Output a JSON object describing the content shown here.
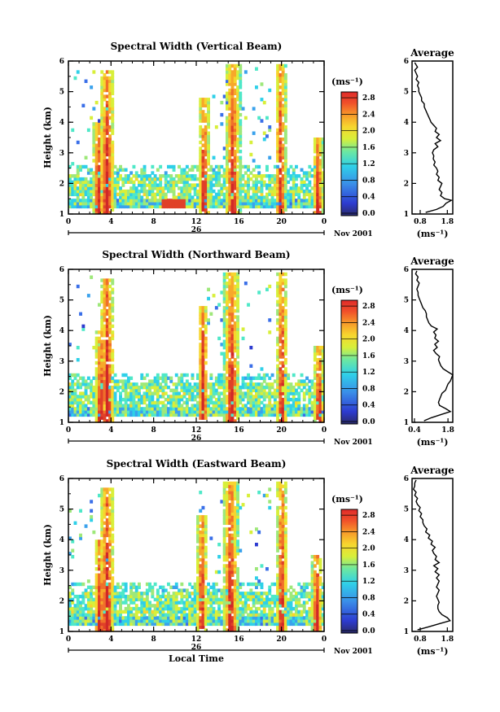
{
  "chart_data": [
    {
      "type": "heatmap",
      "title": "Spectral Width (Vertical Beam)",
      "ylabel": "Height (km)",
      "xticks": [
        "0",
        "4",
        "8",
        "12",
        "16",
        "20",
        "0"
      ],
      "yticks": [
        "1",
        "2",
        "3",
        "4",
        "5",
        "6"
      ],
      "xlim": [
        0,
        24
      ],
      "ylim": [
        1,
        6
      ],
      "day_label": "26",
      "month_label": "Nov 2001",
      "colorbar": {
        "unit": "(ms⁻¹)",
        "ticks": [
          "0.0",
          "0.4",
          "0.8",
          "1.2",
          "1.6",
          "2.0",
          "2.4",
          "2.8"
        ],
        "range": [
          0,
          3.0
        ]
      },
      "burst_times": [
        2.7,
        3.5,
        12.6,
        15.3,
        19.8,
        23.3
      ],
      "average": {
        "title": "Average",
        "xticks": [
          "0.8",
          "1.8"
        ],
        "xlabel": "(ms⁻¹)",
        "xlim": [
          0.5,
          2.0
        ],
        "height": [
          1.05,
          1.15,
          1.25,
          1.35,
          1.45,
          1.5,
          1.6,
          1.7,
          1.8,
          1.9,
          2.0,
          2.1,
          2.2,
          2.3,
          2.4,
          2.5,
          2.6,
          2.7,
          2.8,
          2.9,
          3.0,
          3.1,
          3.2,
          3.3,
          3.4,
          3.5,
          3.6,
          3.7,
          3.8,
          3.9,
          4.0,
          4.1,
          4.2,
          4.3,
          4.4,
          4.5,
          4.6,
          4.7,
          4.8,
          4.9,
          5.0,
          5.1,
          5.2,
          5.3,
          5.4,
          5.5,
          5.6,
          5.7,
          5.8,
          5.95
        ],
        "value": [
          1.0,
          1.4,
          1.65,
          1.75,
          1.95,
          1.7,
          1.55,
          1.6,
          1.5,
          1.55,
          1.6,
          1.45,
          1.5,
          1.4,
          1.45,
          1.4,
          1.3,
          1.35,
          1.28,
          1.3,
          1.25,
          1.3,
          1.45,
          1.35,
          1.55,
          1.4,
          1.5,
          1.35,
          1.4,
          1.3,
          1.2,
          1.15,
          1.1,
          1.05,
          1.0,
          0.95,
          0.95,
          0.85,
          0.85,
          0.8,
          0.75,
          0.75,
          0.7,
          0.75,
          0.65,
          0.7,
          0.65,
          0.6,
          0.7,
          0.6
        ]
      }
    },
    {
      "type": "heatmap",
      "title": "Spectral Width (Northward Beam)",
      "ylabel": "Height (km)",
      "xticks": [
        "0",
        "4",
        "8",
        "12",
        "16",
        "20",
        "0"
      ],
      "yticks": [
        "1",
        "2",
        "3",
        "4",
        "5",
        "6"
      ],
      "xlim": [
        0,
        24
      ],
      "ylim": [
        1,
        6
      ],
      "day_label": "26",
      "month_label": "Nov 2001",
      "colorbar": {
        "unit": "(ms⁻¹)",
        "ticks": [
          "0.0",
          "0.4",
          "0.8",
          "1.2",
          "1.6",
          "2.0",
          "2.4",
          "2.8"
        ],
        "range": [
          0,
          3.0
        ]
      },
      "burst_times": [
        2.9,
        3.5,
        12.5,
        15.2,
        19.9,
        23.4
      ],
      "average": {
        "title": "Average",
        "xticks": [
          "0.4",
          "1.8"
        ],
        "xlabel": "(ms⁻¹)",
        "xlim": [
          0.3,
          2.0
        ],
        "height": [
          1.05,
          1.15,
          1.25,
          1.35,
          1.45,
          1.55,
          1.65,
          1.75,
          1.85,
          1.95,
          2.05,
          2.15,
          2.25,
          2.35,
          2.45,
          2.55,
          2.65,
          2.75,
          2.85,
          2.95,
          3.05,
          3.15,
          3.25,
          3.35,
          3.45,
          3.55,
          3.65,
          3.75,
          3.85,
          3.95,
          4.05,
          4.15,
          4.25,
          4.35,
          4.45,
          4.55,
          4.65,
          4.75,
          4.85,
          4.95,
          5.05,
          5.15,
          5.25,
          5.35,
          5.45,
          5.55,
          5.65,
          5.75,
          5.85,
          5.95
        ],
        "value": [
          0.8,
          1.1,
          1.5,
          1.9,
          1.7,
          1.45,
          1.4,
          1.45,
          1.5,
          1.55,
          1.7,
          1.75,
          1.8,
          1.9,
          1.95,
          2.0,
          1.8,
          1.6,
          1.5,
          1.45,
          1.4,
          1.45,
          1.3,
          1.2,
          1.35,
          1.25,
          1.4,
          1.25,
          1.3,
          1.2,
          1.35,
          1.1,
          1.0,
          0.95,
          0.9,
          0.9,
          0.85,
          0.75,
          0.7,
          0.65,
          0.6,
          0.55,
          0.55,
          0.5,
          0.55,
          0.6,
          0.5,
          0.55,
          0.45,
          0.5
        ]
      }
    },
    {
      "type": "heatmap",
      "title": "Spectral Width (Eastward Beam)",
      "ylabel": "Height (km)",
      "xlabel": "Local Time",
      "xticks": [
        "0",
        "4",
        "8",
        "12",
        "16",
        "20",
        "0"
      ],
      "yticks": [
        "1",
        "2",
        "3",
        "4",
        "5",
        "6"
      ],
      "xlim": [
        0,
        24
      ],
      "ylim": [
        1,
        6
      ],
      "day_label": "26",
      "month_label": "Nov 2001",
      "colorbar": {
        "unit": "(ms⁻¹)",
        "ticks": [
          "0.0",
          "0.4",
          "0.8",
          "1.2",
          "1.6",
          "2.0",
          "2.4",
          "2.8"
        ],
        "range": [
          0,
          3.0
        ]
      },
      "burst_times": [
        2.8,
        3.5,
        12.4,
        15.1,
        19.9,
        23.2
      ],
      "average": {
        "title": "Average",
        "xticks": [
          "0.8",
          "1.8"
        ],
        "xlabel": "(ms⁻¹)",
        "xlim": [
          0.5,
          2.0
        ],
        "height": [
          1.05,
          1.15,
          1.25,
          1.35,
          1.45,
          1.55,
          1.65,
          1.75,
          1.85,
          1.95,
          2.05,
          2.15,
          2.25,
          2.35,
          2.45,
          2.55,
          2.65,
          2.75,
          2.85,
          2.95,
          3.05,
          3.15,
          3.25,
          3.35,
          3.45,
          3.55,
          3.65,
          3.75,
          3.85,
          3.95,
          4.05,
          4.15,
          4.25,
          4.35,
          4.45,
          4.55,
          4.65,
          4.75,
          4.85,
          4.95,
          5.05,
          5.15,
          5.25,
          5.35,
          5.45,
          5.55,
          5.65,
          5.75,
          5.85,
          5.95
        ],
        "value": [
          0.7,
          1.1,
          1.5,
          1.9,
          1.8,
          1.6,
          1.5,
          1.45,
          1.45,
          1.5,
          1.45,
          1.4,
          1.45,
          1.5,
          1.4,
          1.45,
          1.5,
          1.4,
          1.5,
          1.35,
          1.45,
          1.3,
          1.5,
          1.35,
          1.4,
          1.3,
          1.25,
          1.35,
          1.2,
          1.25,
          1.1,
          1.15,
          1.0,
          1.05,
          0.95,
          0.9,
          0.9,
          0.8,
          0.85,
          0.75,
          0.8,
          0.7,
          0.65,
          0.7,
          0.6,
          0.65,
          0.55,
          0.6,
          0.6,
          0.65
        ]
      }
    }
  ]
}
